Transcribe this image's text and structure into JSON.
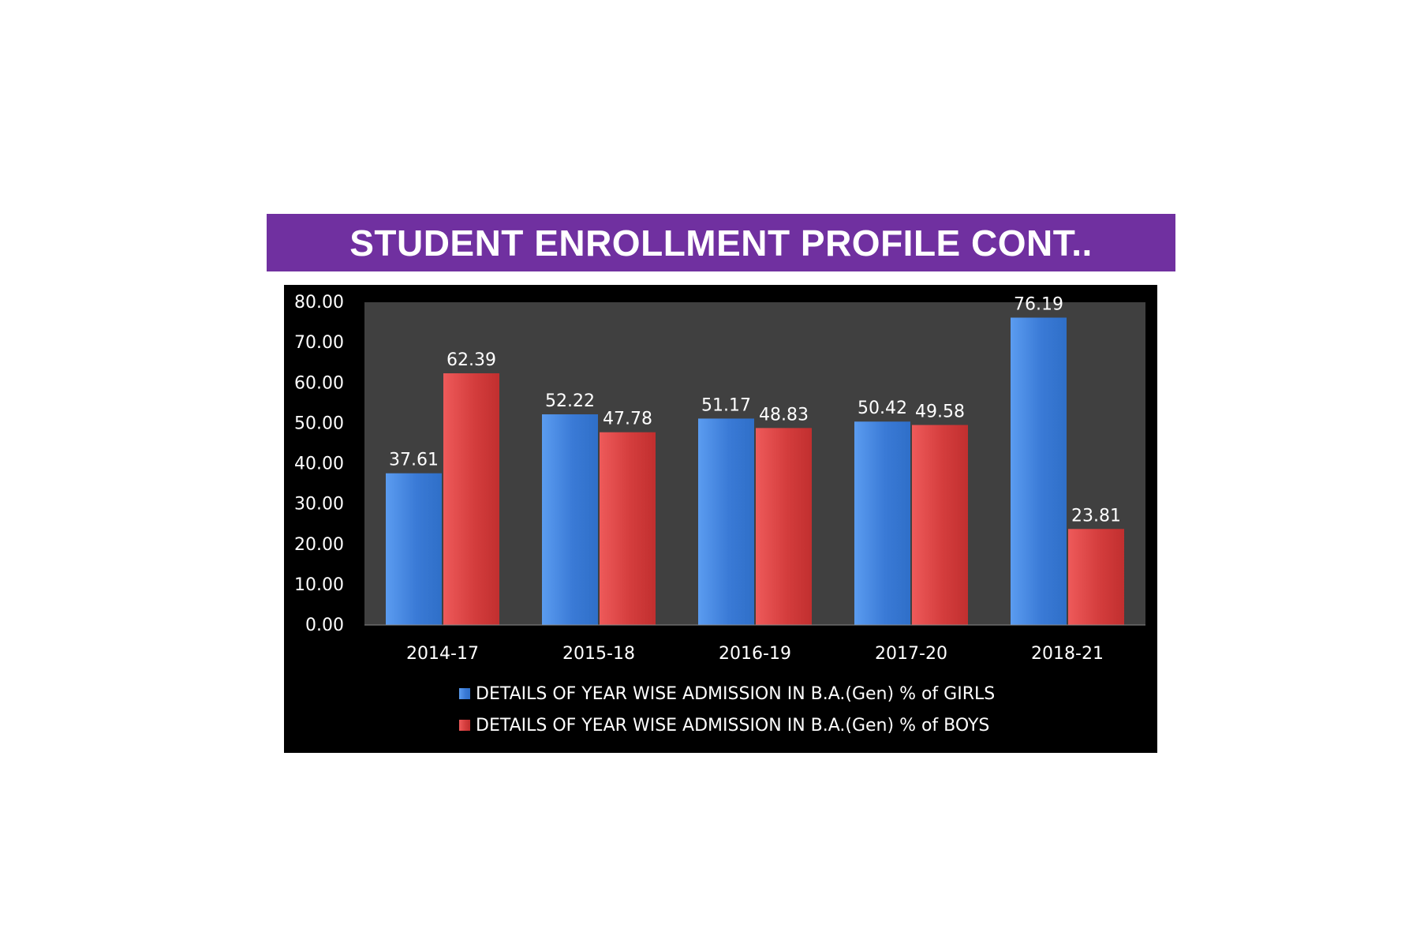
{
  "title": "STUDENT ENROLLMENT PROFILE CONT..",
  "chart_data": {
    "type": "bar",
    "categories": [
      "2014-17",
      "2015-18",
      "2016-19",
      "2017-20",
      "2018-21"
    ],
    "series": [
      {
        "name": "DETAILS OF YEAR WISE ADMISSION IN B.A.(Gen) % of GIRLS",
        "values": [
          37.61,
          52.22,
          51.17,
          50.42,
          76.19
        ],
        "labels": [
          "37.61",
          "52.22",
          "51.17",
          "50.42",
          "76.19"
        ],
        "color": "#3b7dd8"
      },
      {
        "name": "DETAILS OF YEAR WISE ADMISSION IN B.A.(Gen) % of BOYS",
        "values": [
          62.39,
          47.78,
          48.83,
          49.58,
          23.81
        ],
        "labels": [
          "62.39",
          "47.78",
          "48.83",
          "49.58",
          "23.81"
        ],
        "color": "#d63b3b"
      }
    ],
    "ylim": [
      0,
      80
    ],
    "yticks": [
      "0.00",
      "10.00",
      "20.00",
      "30.00",
      "40.00",
      "50.00",
      "60.00",
      "70.00",
      "80.00"
    ],
    "plot_background": "#404040",
    "chart_background": "#000000",
    "legend_position": "bottom",
    "grid": false
  }
}
